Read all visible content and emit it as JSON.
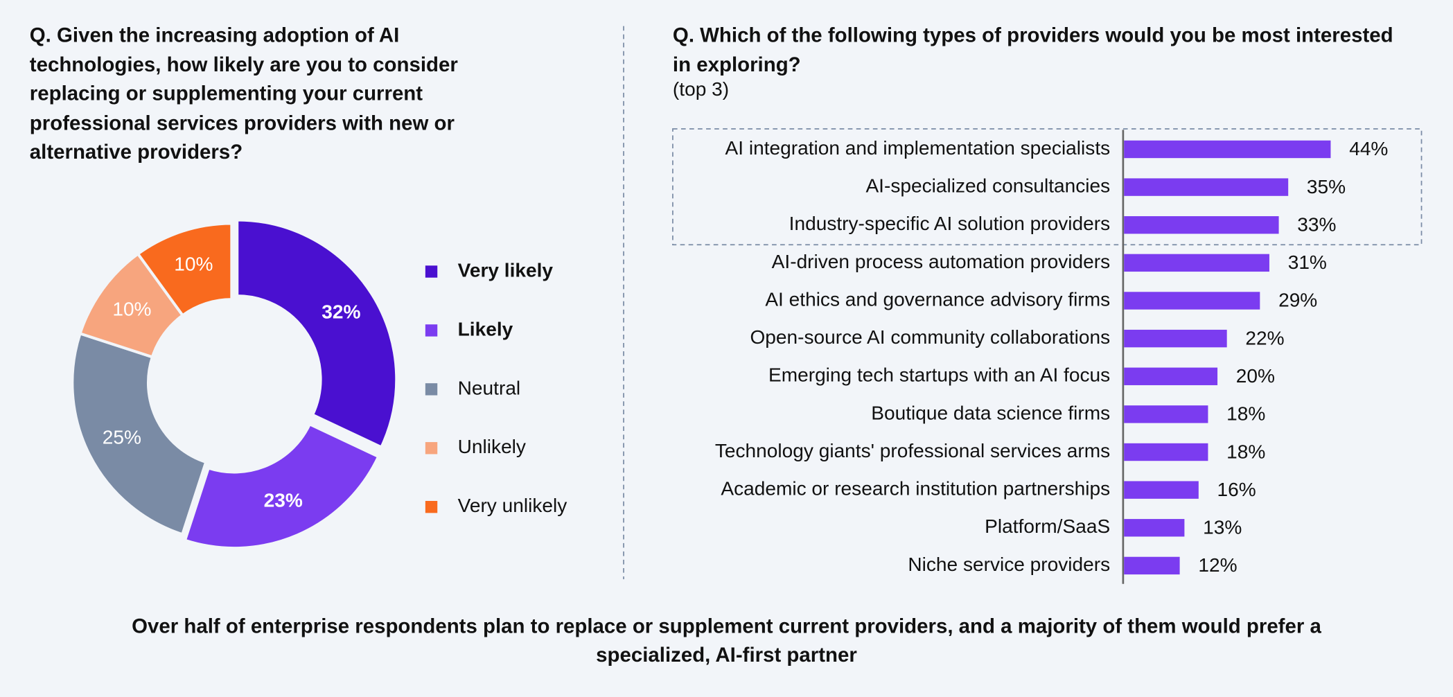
{
  "chart_data": [
    {
      "type": "pie",
      "title": "Q. Given the increasing adoption of AI technologies, how likely are you to consider replacing or supplementing your current professional services providers with new or alternative providers?",
      "categories": [
        "Very likely",
        "Likely",
        "Neutral",
        "Unlikely",
        "Very unlikely"
      ],
      "values": [
        32,
        23,
        25,
        10,
        10
      ],
      "value_labels": [
        "32%",
        "23%",
        "25%",
        "10%",
        "10%"
      ],
      "colors": [
        "#4a10d0",
        "#7b3cf0",
        "#7a8ba5",
        "#f7a57e",
        "#f96a1e"
      ],
      "legend": "right"
    },
    {
      "type": "barh",
      "title": "Q. Which of the following types of providers would you be most interested in exploring?",
      "subtitle": "(top 3)",
      "categories": [
        "AI integration and implementation specialists",
        "AI-specialized consultancies",
        "Industry-specific AI solution providers",
        "AI-driven process automation providers",
        "AI ethics and governance advisory firms",
        "Open-source AI community collaborations",
        "Emerging tech startups with an AI focus",
        "Boutique data science firms",
        "Technology giants' professional services arms",
        "Academic or research institution partnerships",
        "Platform/SaaS",
        "Niche service providers"
      ],
      "values": [
        44,
        35,
        33,
        31,
        29,
        22,
        20,
        18,
        18,
        16,
        13,
        12
      ],
      "value_labels": [
        "44%",
        "35%",
        "33%",
        "31%",
        "29%",
        "22%",
        "20%",
        "18%",
        "18%",
        "16%",
        "13%",
        "12%"
      ],
      "color": "#7b3cf0",
      "xlim": [
        0,
        44
      ]
    }
  ],
  "caption": "Over half of enterprise respondents plan to replace or supplement current providers, and a majority of them would prefer a specialized, AI-first partner"
}
